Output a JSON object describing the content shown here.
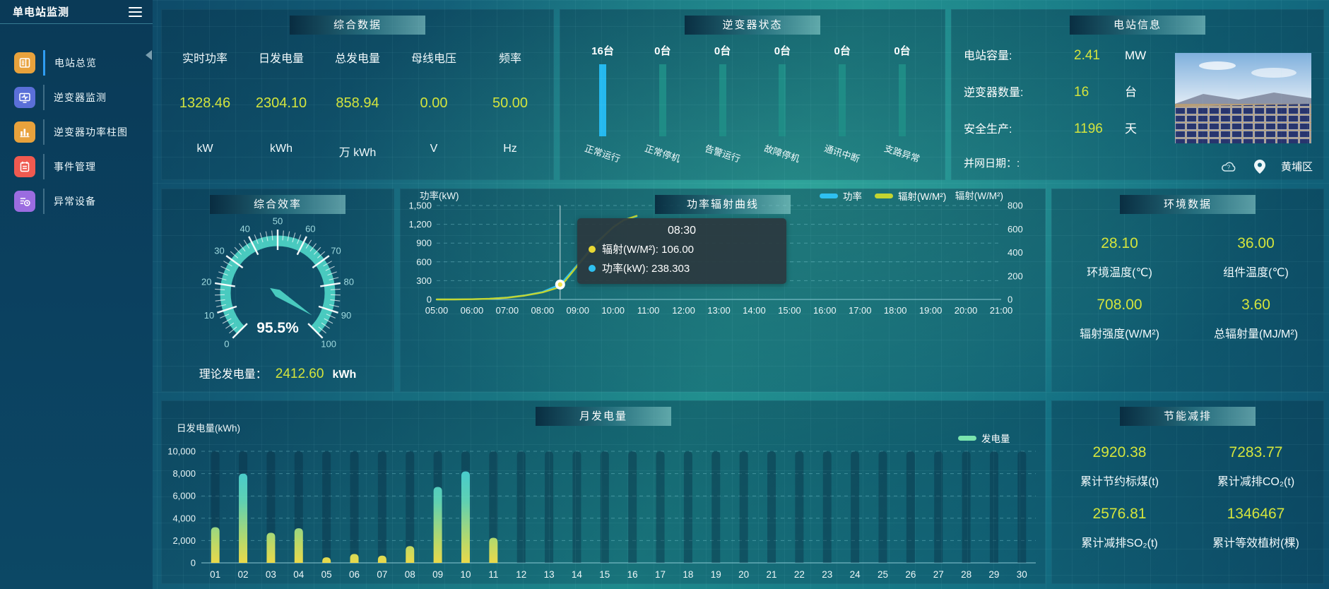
{
  "sidebar": {
    "title": "单电站监测",
    "menu": [
      {
        "label": "电站总览",
        "icon": "news-icon",
        "color": "#e8a23c",
        "active": true
      },
      {
        "label": "逆变器监测",
        "icon": "monitor-icon",
        "color": "#5a6fd8",
        "active": false
      },
      {
        "label": "逆变器功率柱图",
        "icon": "bar-chart-icon",
        "color": "#e8a23c",
        "active": false
      },
      {
        "label": "事件管理",
        "icon": "event-icon",
        "color": "#f05a50",
        "active": false
      },
      {
        "label": "异常设备",
        "icon": "device-alert-icon",
        "color": "#9b6ce0",
        "active": false
      }
    ]
  },
  "panels": {
    "summary": {
      "title": "综合数据",
      "metrics": [
        {
          "label": "实时功率",
          "value": "1328.46",
          "unit": "kW"
        },
        {
          "label": "日发电量",
          "value": "2304.10",
          "unit": "kWh"
        },
        {
          "label": "总发电量",
          "value": "858.94",
          "unit": "万 kWh"
        },
        {
          "label": "母线电压",
          "value": "0.00",
          "unit": "V"
        },
        {
          "label": "频率",
          "value": "50.00",
          "unit": "Hz"
        }
      ]
    },
    "inverter_status": {
      "title": "逆变器状态",
      "bars": [
        {
          "count": "16台",
          "label": "正常运行"
        },
        {
          "count": "0台",
          "label": "正常停机"
        },
        {
          "count": "0台",
          "label": "告警运行"
        },
        {
          "count": "0台",
          "label": "故障停机"
        },
        {
          "count": "0台",
          "label": "通讯中断"
        },
        {
          "count": "0台",
          "label": "支路异常"
        }
      ]
    },
    "station_info": {
      "title": "电站信息",
      "rows": [
        {
          "label": "电站容量:",
          "value": "2.41",
          "unit": "MW"
        },
        {
          "label": "逆变器数量:",
          "value": "16",
          "unit": "台"
        },
        {
          "label": "安全生产:",
          "value": "1196",
          "unit": "天"
        }
      ],
      "grid_date_label": "并网日期：:",
      "location": "黄埔区"
    },
    "efficiency": {
      "title": "综合效率",
      "theory_label": "理论发电量：",
      "theory_value": "2412.60",
      "theory_unit": "kWh"
    },
    "power_curve": {
      "title": "功率辐射曲线",
      "tooltip": {
        "title": "08:30",
        "rows": [
          {
            "color": "#e8d834",
            "text": "辐射(W/M²): 106.00"
          },
          {
            "color": "#2ec0f0",
            "text": "功率(kW): 238.303"
          }
        ]
      }
    },
    "environment": {
      "title": "环境数据",
      "metrics": [
        {
          "value": "28.10",
          "label": "环境温度(℃)"
        },
        {
          "value": "36.00",
          "label": "组件温度(℃)"
        },
        {
          "value": "708.00",
          "label": "辐射强度(W/M²)"
        },
        {
          "value": "3.60",
          "label": "总辐射量(MJ/M²)"
        }
      ]
    },
    "monthly": {
      "title": "月发电量"
    },
    "savings": {
      "title": "节能减排",
      "metrics": [
        {
          "value": "2920.38",
          "label": "累计节约标煤(t)"
        },
        {
          "value": "7283.77",
          "label": "累计减排CO₂(t)"
        },
        {
          "value": "2576.81",
          "label": "累计减排SO₂(t)"
        },
        {
          "value": "1346467",
          "label": "累计等效植树(棵)"
        }
      ]
    }
  },
  "colors": {
    "value_text": "#d4e43c",
    "power_line": "#2ec0f0",
    "radiation_line": "#c3d531",
    "inverter_bar_active": "#25b9ef",
    "inverter_bar_idle": "#1f8c86",
    "gauge_arc": "#49cabf",
    "generation_legend": "#7ae4ad",
    "sidebar_active_indicator": "#2f9df2"
  },
  "chart_data": [
    {
      "id": "power_radiation",
      "type": "line",
      "title": "功率辐射曲线",
      "x_ticks": [
        "05:00",
        "06:00",
        "07:00",
        "08:00",
        "09:00",
        "10:00",
        "11:00",
        "12:00",
        "13:00",
        "14:00",
        "15:00",
        "16:00",
        "17:00",
        "18:00",
        "19:00",
        "20:00",
        "21:00"
      ],
      "x_range": [
        5,
        21
      ],
      "left_axis": {
        "label": "功率(kW)",
        "max": 1500,
        "tick_values": [
          0,
          300,
          600,
          900,
          1200,
          1500
        ],
        "tick_labels": [
          "0",
          "300",
          "600",
          "900",
          "1,200",
          "1,500"
        ]
      },
      "right_axis": {
        "label": "辐射(W/M²)",
        "max": 800,
        "tick_values": [
          0,
          200,
          400,
          600,
          800
        ],
        "tick_labels": [
          "0",
          "200",
          "400",
          "600",
          "800"
        ]
      },
      "legend": [
        {
          "name": "功率",
          "color": "#2ec0f0"
        },
        {
          "name": "辐射(W/M²)",
          "color": "#c3d531"
        }
      ],
      "series": [
        {
          "name": "功率",
          "axis": "left",
          "color": "#2ec0f0",
          "points": [
            [
              5,
              0
            ],
            [
              5.5,
              1
            ],
            [
              6,
              3
            ],
            [
              6.5,
              10
            ],
            [
              7,
              30
            ],
            [
              7.5,
              65
            ],
            [
              8,
              120
            ],
            [
              8.5,
              238.303
            ],
            [
              9,
              560
            ],
            [
              9.5,
              900
            ],
            [
              10,
              1150
            ],
            [
              10.3,
              1270
            ],
            [
              10.67,
              1328
            ]
          ]
        },
        {
          "name": "辐射(W/M²)",
          "axis": "right",
          "color": "#c3d531",
          "points": [
            [
              5,
              0
            ],
            [
              5.5,
              0
            ],
            [
              6,
              2
            ],
            [
              6.5,
              6
            ],
            [
              7,
              15
            ],
            [
              7.5,
              33
            ],
            [
              8,
              60
            ],
            [
              8.5,
              106
            ],
            [
              9,
              290
            ],
            [
              9.5,
              470
            ],
            [
              10,
              615
            ],
            [
              10.3,
              675
            ],
            [
              10.67,
              712
            ]
          ]
        }
      ],
      "hover": {
        "x": 8.5,
        "time": "08:30",
        "power": 238.303,
        "radiation": 106.0
      }
    },
    {
      "id": "monthly_generation",
      "type": "bar",
      "title": "月发电量",
      "ylabel": "日发电量(kWh)",
      "ymax": 10000,
      "y_tick_values": [
        0,
        2000,
        4000,
        6000,
        8000,
        10000
      ],
      "y_tick_labels": [
        "0",
        "2,000",
        "4,000",
        "6,000",
        "8,000",
        "10,000"
      ],
      "legend": [
        {
          "name": "发电量",
          "color": "#7ae4ad"
        }
      ],
      "categories": [
        "01",
        "02",
        "03",
        "04",
        "05",
        "06",
        "07",
        "08",
        "09",
        "10",
        "11",
        "12",
        "13",
        "14",
        "15",
        "16",
        "17",
        "18",
        "19",
        "20",
        "21",
        "22",
        "23",
        "24",
        "25",
        "26",
        "27",
        "28",
        "29",
        "30"
      ],
      "values": [
        3200,
        8000,
        2700,
        3100,
        500,
        800,
        650,
        1500,
        6800,
        8200,
        2250,
        0,
        0,
        0,
        0,
        0,
        0,
        0,
        0,
        0,
        0,
        0,
        0,
        0,
        0,
        0,
        0,
        0,
        0,
        0
      ]
    },
    {
      "id": "efficiency_gauge",
      "type": "gauge",
      "min": 0,
      "max": 100,
      "value": 95.5,
      "display": "95.5%",
      "tick_labels": [
        "0",
        "10",
        "20",
        "30",
        "40",
        "50",
        "60",
        "70",
        "80",
        "90",
        "100"
      ]
    },
    {
      "id": "inverter_status",
      "type": "bar",
      "unit": "台",
      "categories": [
        "正常运行",
        "正常停机",
        "告警运行",
        "故障停机",
        "通讯中断",
        "支路异常"
      ],
      "values": [
        16,
        0,
        0,
        0,
        0,
        0
      ]
    }
  ]
}
